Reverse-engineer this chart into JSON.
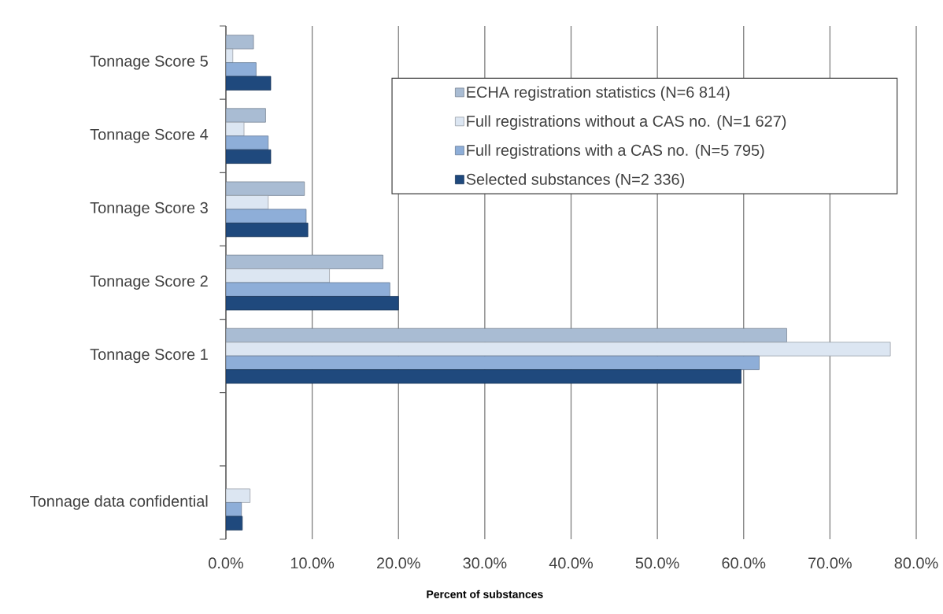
{
  "chart_data": {
    "type": "bar",
    "orientation": "horizontal",
    "xlabel": "Percent of substances",
    "categories": [
      "Tonnage Score 5",
      "Tonnage Score 4",
      "Tonnage Score 3",
      "Tonnage Score 2",
      "Tonnage Score 1",
      null,
      "Tonnage data confidential"
    ],
    "series": [
      {
        "name": "ECHA registration statistics (N=6 814)",
        "color": "#a9bcd3",
        "values": [
          3.2,
          4.6,
          9.1,
          18.2,
          65.0,
          null,
          null
        ]
      },
      {
        "name": "Full registrations without a CAS no. (N=1 627)",
        "color": "#dce6f2",
        "values": [
          0.8,
          2.1,
          4.9,
          12.0,
          77.0,
          null,
          2.8
        ]
      },
      {
        "name": "Full registrations with a CAS no. (N=5 795)",
        "color": "#8eaed8",
        "values": [
          3.5,
          4.9,
          9.3,
          19.0,
          61.8,
          null,
          1.8
        ]
      },
      {
        "name": "Selected substances (N=2 336)",
        "color": "#1f497d",
        "values": [
          5.2,
          5.2,
          9.5,
          20.0,
          59.7,
          null,
          1.9
        ]
      }
    ],
    "xlim": [
      0,
      80
    ],
    "xticks": [
      {
        "value": 0,
        "label": "0.0%"
      },
      {
        "value": 10,
        "label": "10.0%"
      },
      {
        "value": 20,
        "label": "20.0%"
      },
      {
        "value": 30,
        "label": "30.0%"
      },
      {
        "value": 40,
        "label": "40.0%"
      },
      {
        "value": 50,
        "label": "50.0%"
      },
      {
        "value": 60,
        "label": "60.0%"
      },
      {
        "value": 70,
        "label": "70.0%"
      },
      {
        "value": 80,
        "label": "80.0%"
      }
    ],
    "grid": "x",
    "legend": "top right"
  }
}
